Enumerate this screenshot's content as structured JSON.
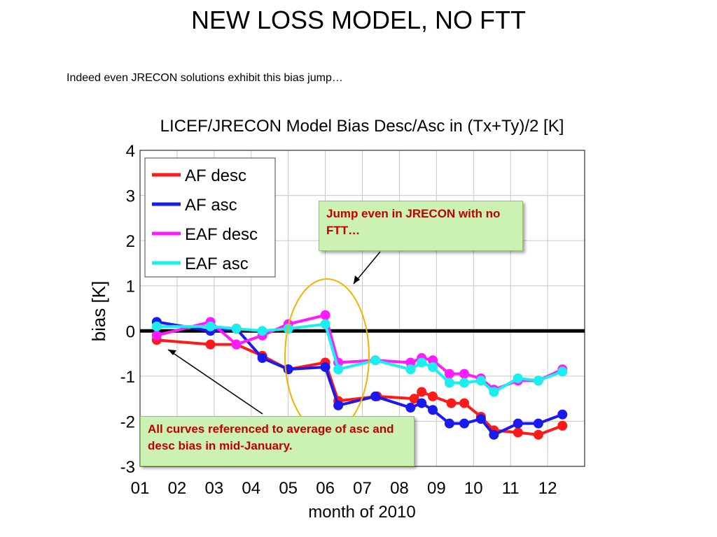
{
  "slide": {
    "title": "NEW LOSS MODEL, NO FTT",
    "subtitle": "Indeed even JRECON solutions exhibit this bias jump…"
  },
  "annotations": {
    "jump": "Jump even in JRECON with no FTT…",
    "reference": "All curves referenced to average of asc and desc bias in mid-January."
  },
  "chart_data": {
    "type": "line",
    "title": "LICEF/JRECON Model Bias Desc/Asc in (Tx+Ty)/2 [K]",
    "xlabel": "month of 2010",
    "ylabel": "bias [K]",
    "xlim": [
      1,
      13
    ],
    "ylim": [
      -3,
      4
    ],
    "x_ticks": [
      "01",
      "02",
      "03",
      "04",
      "05",
      "06",
      "07",
      "08",
      "09",
      "10",
      "11",
      "12"
    ],
    "y_ticks": [
      "-3",
      "-2",
      "-1",
      "0",
      "1",
      "2",
      "3",
      "4"
    ],
    "grid": true,
    "zero_line": true,
    "legend_position": "top-left",
    "series": [
      {
        "name": "AF desc",
        "color": "#ff1a1a",
        "x": [
          1.45,
          2.9,
          3.6,
          4.3,
          5.0,
          6.0,
          6.35,
          7.4,
          8.4,
          8.6,
          8.9,
          9.4,
          9.75,
          10.2,
          10.55,
          11.2,
          11.75,
          12.4
        ],
        "y": [
          -0.2,
          -0.3,
          -0.3,
          -0.55,
          -0.85,
          -0.7,
          -1.55,
          -1.45,
          -1.5,
          -1.35,
          -1.45,
          -1.6,
          -1.6,
          -1.9,
          -2.2,
          -2.25,
          -2.3,
          -2.1
        ]
      },
      {
        "name": "AF asc",
        "color": "#1a1aee",
        "x": [
          1.45,
          2.9,
          3.6,
          4.3,
          5.0,
          6.0,
          6.35,
          7.35,
          8.3,
          8.6,
          8.9,
          9.35,
          9.75,
          10.2,
          10.55,
          11.2,
          11.75,
          12.4
        ],
        "y": [
          0.2,
          0.0,
          0.05,
          -0.6,
          -0.85,
          -0.8,
          -1.65,
          -1.45,
          -1.7,
          -1.6,
          -1.75,
          -2.05,
          -2.05,
          -1.95,
          -2.3,
          -2.05,
          -2.05,
          -1.85
        ]
      },
      {
        "name": "EAF desc",
        "color": "#ff1aff",
        "x": [
          1.45,
          2.9,
          3.6,
          4.3,
          5.0,
          6.0,
          6.35,
          7.35,
          8.3,
          8.6,
          8.9,
          9.35,
          9.75,
          10.2,
          10.55,
          11.2,
          11.75,
          12.4
        ],
        "y": [
          -0.1,
          0.2,
          -0.3,
          -0.1,
          0.15,
          0.35,
          -0.7,
          -0.65,
          -0.7,
          -0.6,
          -0.65,
          -0.95,
          -0.95,
          -1.05,
          -1.3,
          -1.1,
          -1.1,
          -0.85
        ]
      },
      {
        "name": "EAF asc",
        "color": "#1aeeee",
        "x": [
          1.45,
          2.9,
          3.6,
          4.3,
          5.0,
          6.0,
          6.35,
          7.35,
          8.3,
          8.6,
          8.9,
          9.35,
          9.75,
          10.2,
          10.55,
          11.2,
          11.75,
          12.4
        ],
        "y": [
          0.1,
          0.1,
          0.05,
          0.0,
          0.05,
          0.15,
          -0.85,
          -0.65,
          -0.85,
          -0.7,
          -0.8,
          -1.15,
          -1.15,
          -1.1,
          -1.35,
          -1.05,
          -1.1,
          -0.9
        ]
      }
    ]
  }
}
